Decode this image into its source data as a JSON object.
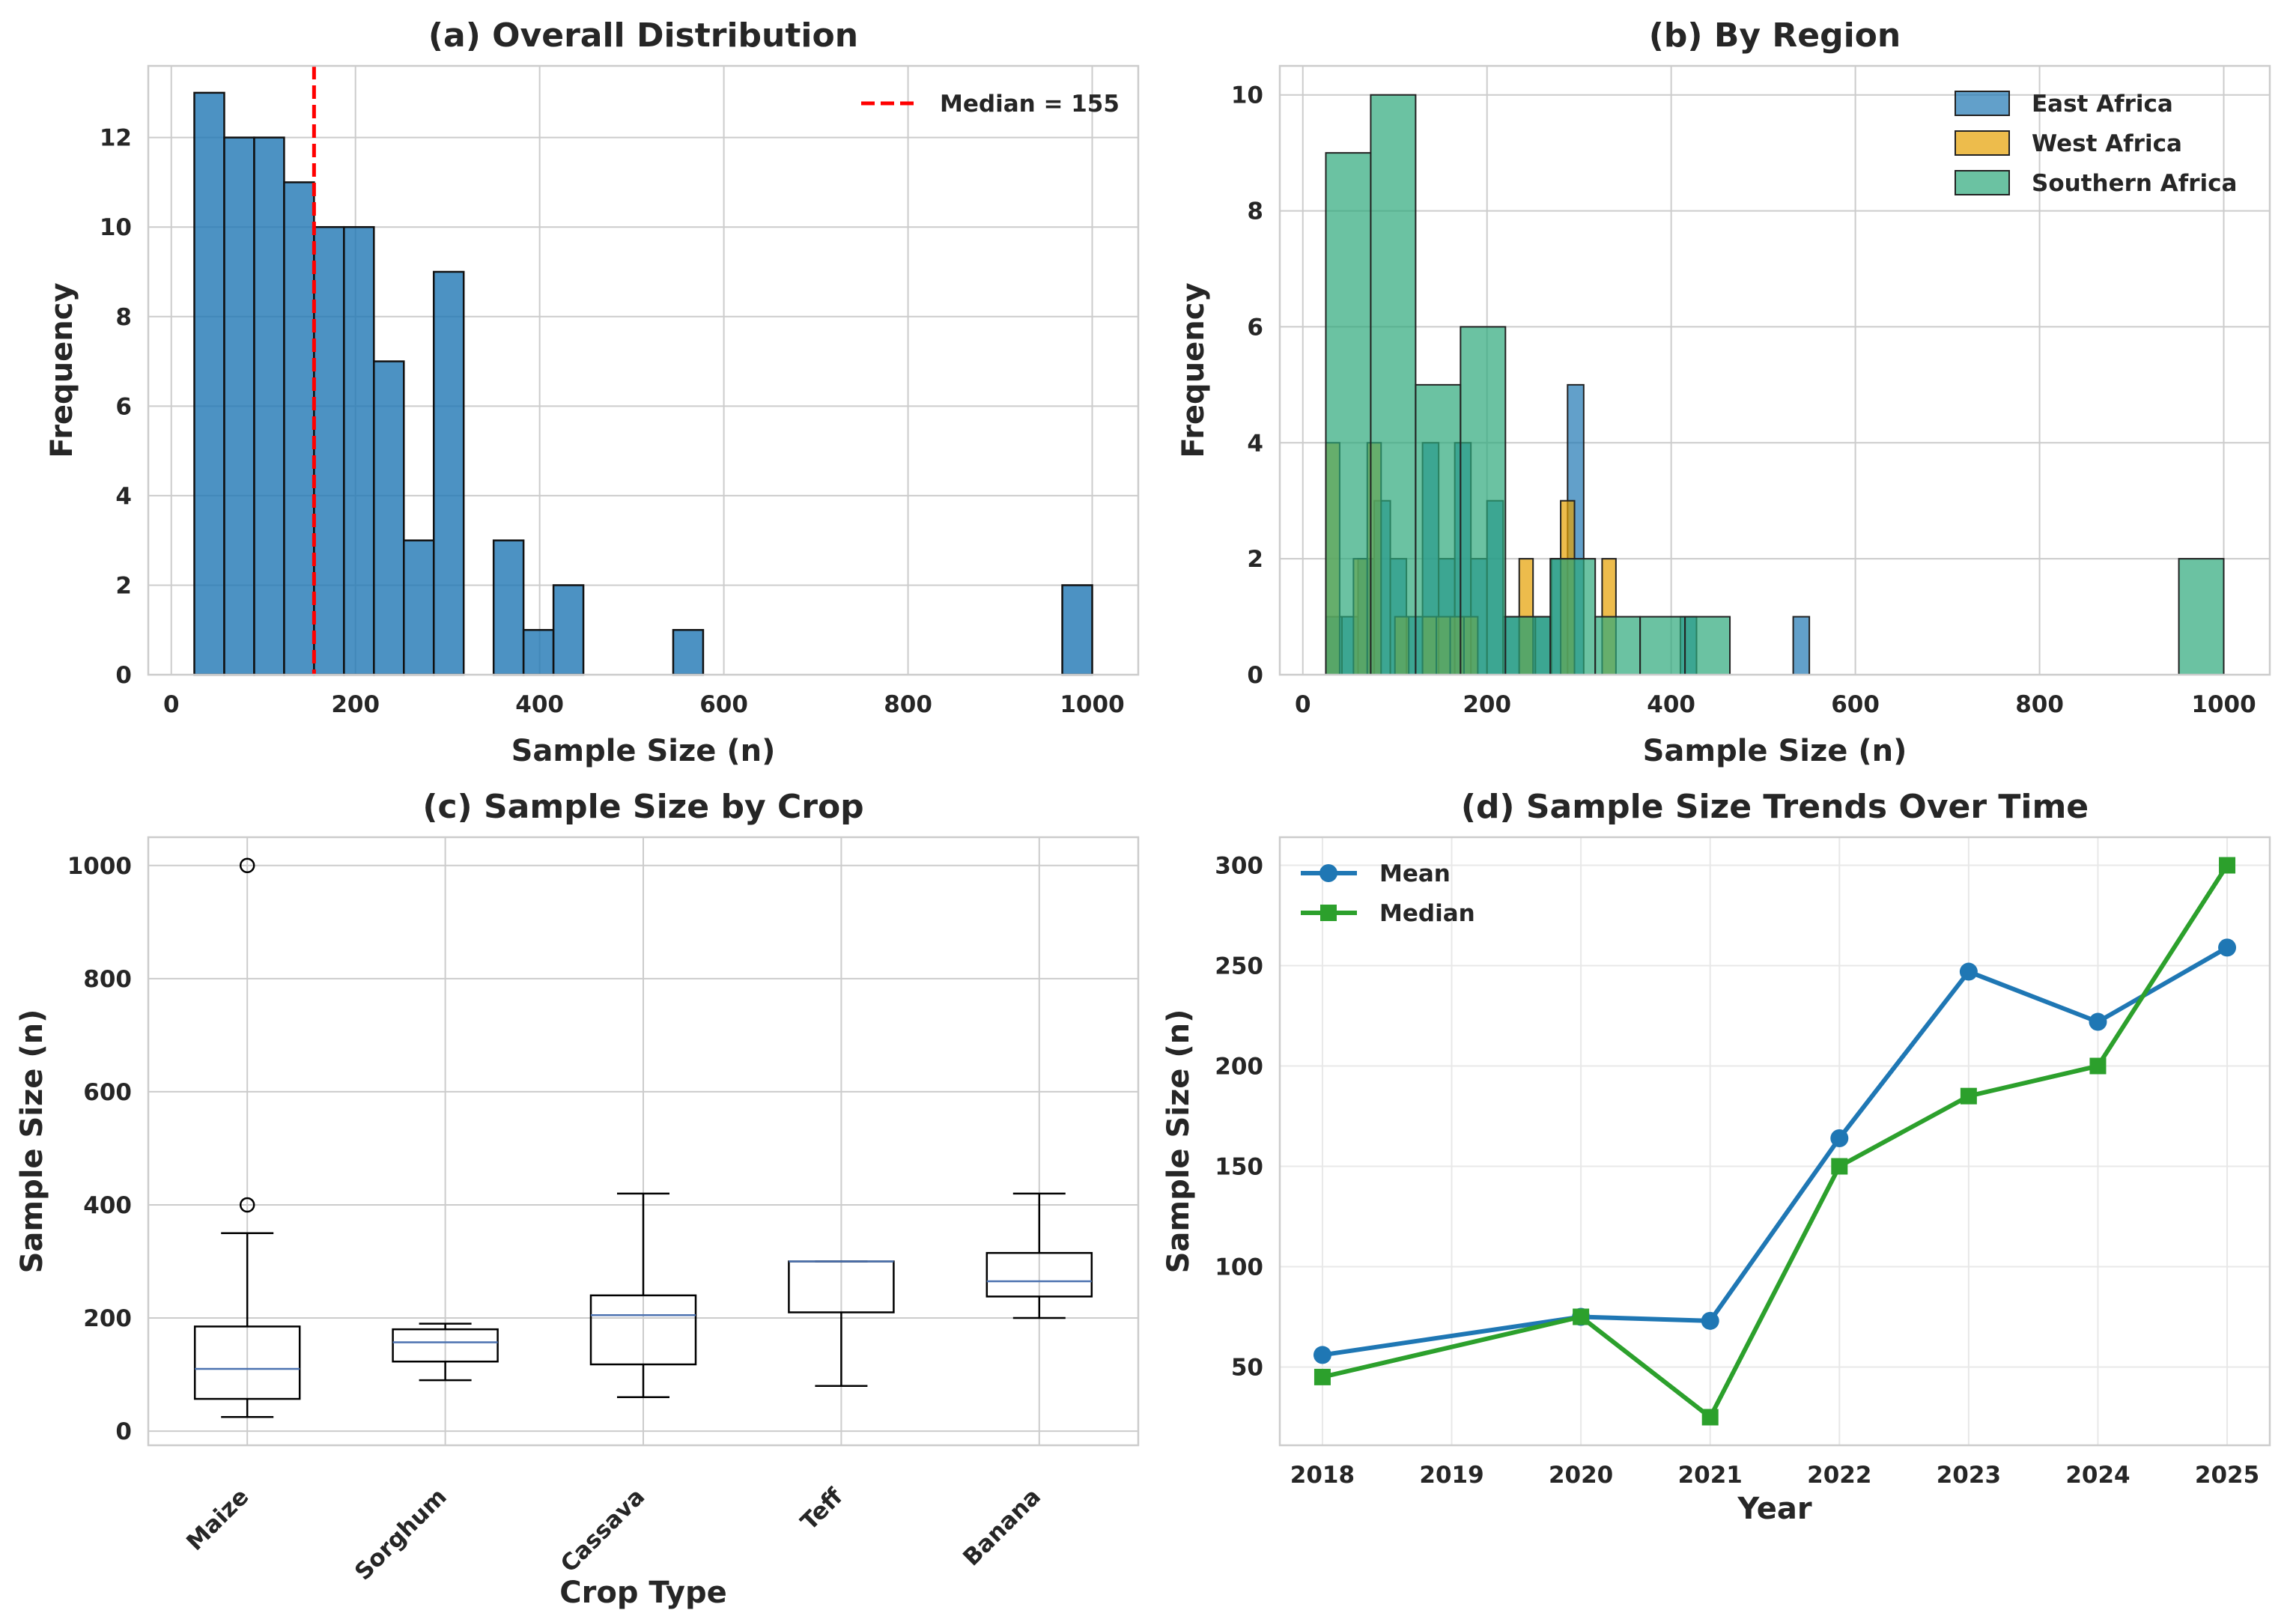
{
  "chart_data": [
    {
      "id": "a",
      "type": "bar",
      "title": "(a) Overall Distribution",
      "xlabel": "Sample Size (n)",
      "ylabel": "Frequency",
      "xlim": [
        -25,
        1050
      ],
      "ylim": [
        0,
        13.6
      ],
      "xticks": [
        0,
        200,
        400,
        600,
        800,
        1000
      ],
      "yticks": [
        0,
        2,
        4,
        6,
        8,
        10,
        12
      ],
      "grid": true,
      "color": "#1f77b4",
      "bin_width": 32.5,
      "bins": [
        {
          "start": 25,
          "count": 13
        },
        {
          "start": 57.5,
          "count": 12
        },
        {
          "start": 90,
          "count": 12
        },
        {
          "start": 122.5,
          "count": 11
        },
        {
          "start": 155,
          "count": 10
        },
        {
          "start": 187.5,
          "count": 10
        },
        {
          "start": 220,
          "count": 7
        },
        {
          "start": 252.5,
          "count": 3
        },
        {
          "start": 285,
          "count": 9
        },
        {
          "start": 350,
          "count": 3
        },
        {
          "start": 382.5,
          "count": 1
        },
        {
          "start": 415,
          "count": 2
        },
        {
          "start": 545,
          "count": 1
        },
        {
          "start": 967.5,
          "count": 2
        }
      ],
      "median_line": {
        "x": 155,
        "label": "Median = 155",
        "color": "#ff0000"
      },
      "legend_position": "top-right"
    },
    {
      "id": "b",
      "type": "bar",
      "title": "(b) By Region",
      "xlabel": "Sample Size (n)",
      "ylabel": "Frequency",
      "xlim": [
        -25,
        1050
      ],
      "ylim": [
        0,
        10.5
      ],
      "xticks": [
        0,
        200,
        400,
        600,
        800,
        1000
      ],
      "yticks": [
        0,
        2,
        4,
        6,
        8,
        10
      ],
      "grid": true,
      "legend_position": "top-right",
      "series": [
        {
          "name": "East Africa",
          "color": "#1f77b4",
          "bin_width": 17.5,
          "bins": [
            {
              "start": 25,
              "count": 1
            },
            {
              "start": 42.5,
              "count": 1
            },
            {
              "start": 60,
              "count": 2
            },
            {
              "start": 77.5,
              "count": 3
            },
            {
              "start": 95,
              "count": 2
            },
            {
              "start": 112.5,
              "count": 1
            },
            {
              "start": 130,
              "count": 4
            },
            {
              "start": 147.5,
              "count": 2
            },
            {
              "start": 165,
              "count": 4
            },
            {
              "start": 182.5,
              "count": 2
            },
            {
              "start": 200,
              "count": 3
            },
            {
              "start": 217.5,
              "count": 1
            },
            {
              "start": 235,
              "count": 1
            },
            {
              "start": 252.5,
              "count": 1
            },
            {
              "start": 270,
              "count": 2
            },
            {
              "start": 287.5,
              "count": 5
            },
            {
              "start": 410,
              "count": 1
            },
            {
              "start": 532.5,
              "count": 1
            }
          ]
        },
        {
          "name": "West Africa",
          "color": "#e69f00",
          "bin_width": 15,
          "bins": [
            {
              "start": 25,
              "count": 4
            },
            {
              "start": 55,
              "count": 2
            },
            {
              "start": 70,
              "count": 4
            },
            {
              "start": 100,
              "count": 1
            },
            {
              "start": 130,
              "count": 1
            },
            {
              "start": 145,
              "count": 1
            },
            {
              "start": 160,
              "count": 1
            },
            {
              "start": 175,
              "count": 1
            },
            {
              "start": 235,
              "count": 2
            },
            {
              "start": 280,
              "count": 3
            },
            {
              "start": 325,
              "count": 2
            }
          ]
        },
        {
          "name": "Southern Africa",
          "color": "#2ca87a",
          "bin_width": 48.75,
          "bins": [
            {
              "start": 25,
              "count": 9
            },
            {
              "start": 73.75,
              "count": 10
            },
            {
              "start": 122.5,
              "count": 5
            },
            {
              "start": 171.25,
              "count": 6
            },
            {
              "start": 220,
              "count": 1
            },
            {
              "start": 268.75,
              "count": 2
            },
            {
              "start": 317.5,
              "count": 1
            },
            {
              "start": 366.25,
              "count": 1
            },
            {
              "start": 415,
              "count": 1
            },
            {
              "start": 951.25,
              "count": 2
            }
          ]
        }
      ]
    },
    {
      "id": "c",
      "type": "box",
      "title": "(c) Sample Size by Crop",
      "xlabel": "Crop Type",
      "ylabel": "Sample Size (n)",
      "ylim": [
        -25,
        1050
      ],
      "yticks": [
        0,
        200,
        400,
        600,
        800,
        1000
      ],
      "grid": true,
      "categories": [
        "Maize",
        "Sorghum",
        "Cassava",
        "Teff",
        "Banana"
      ],
      "boxes": [
        {
          "whisker_low": 25,
          "q1": 57,
          "median": 110,
          "q3": 185,
          "whisker_high": 350,
          "outliers": [
            400,
            1000
          ]
        },
        {
          "whisker_low": 90,
          "q1": 123,
          "median": 157,
          "q3": 180,
          "whisker_high": 190,
          "outliers": []
        },
        {
          "whisker_low": 60,
          "q1": 118,
          "median": 205,
          "q3": 240,
          "whisker_high": 420,
          "outliers": []
        },
        {
          "whisker_low": 80,
          "q1": 210,
          "median": 300,
          "q3": 300,
          "whisker_high": 300,
          "outliers": []
        },
        {
          "whisker_low": 200,
          "q1": 238,
          "median": 265,
          "q3": 315,
          "whisker_high": 420,
          "outliers": []
        }
      ]
    },
    {
      "id": "d",
      "type": "line",
      "title": "(d) Sample Size Trends Over Time",
      "xlabel": "Year",
      "ylabel": "Sample Size (n)",
      "xlim": [
        2017.67,
        2025.33
      ],
      "ylim": [
        11,
        314
      ],
      "xticks": [
        2018,
        2019,
        2020,
        2021,
        2022,
        2023,
        2024,
        2025
      ],
      "yticks": [
        50,
        100,
        150,
        200,
        250,
        300
      ],
      "grid": true,
      "legend_position": "top-left",
      "x": [
        2018,
        2020,
        2021,
        2022,
        2023,
        2024,
        2025
      ],
      "series": [
        {
          "name": "Mean",
          "color": "#1f77b4",
          "marker": "circle",
          "values": [
            56,
            75,
            73,
            164,
            247,
            222,
            259
          ]
        },
        {
          "name": "Median",
          "color": "#2ca02c",
          "marker": "square",
          "values": [
            45,
            75,
            25,
            150,
            185,
            200,
            300
          ]
        }
      ]
    }
  ]
}
